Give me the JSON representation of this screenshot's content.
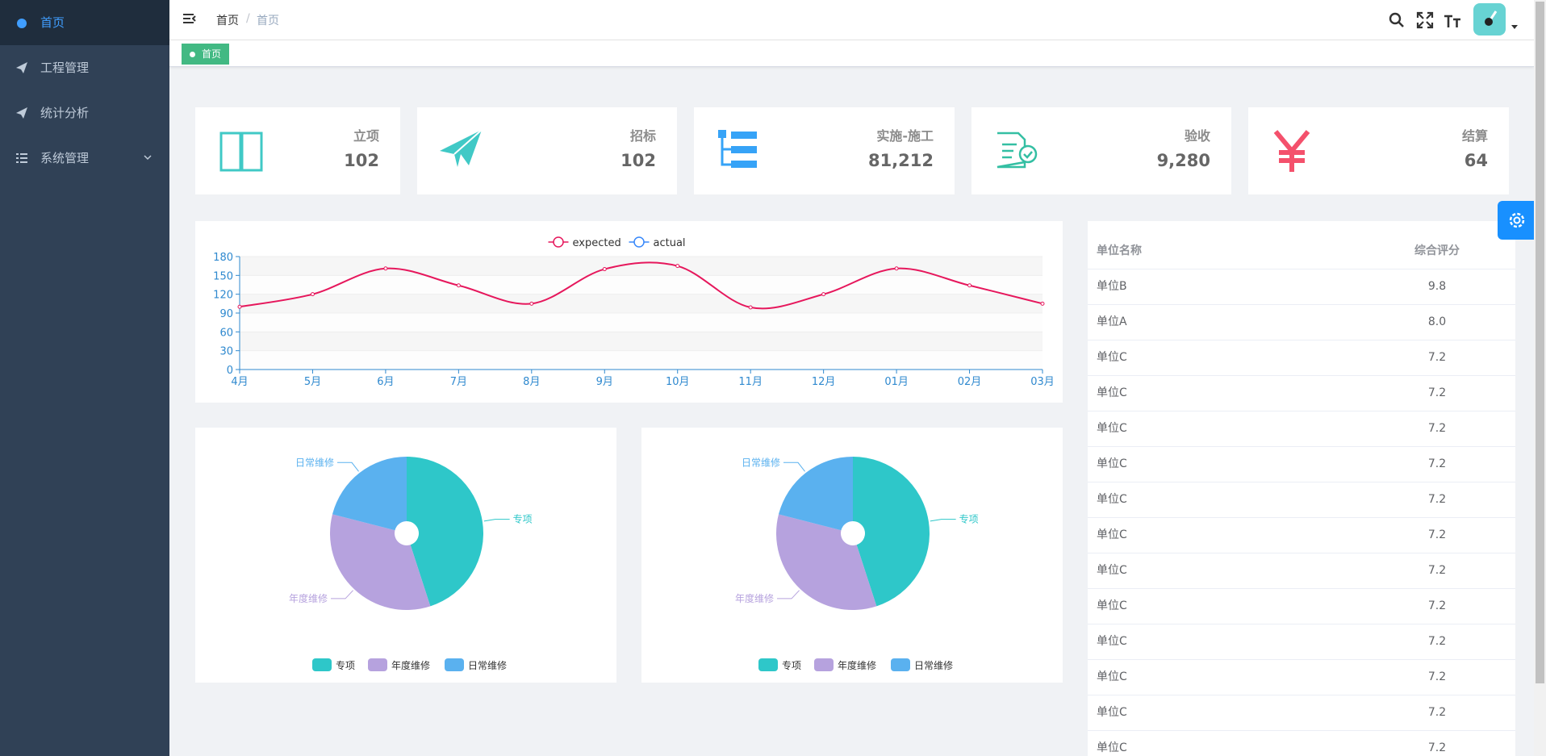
{
  "sidebar": {
    "menu": [
      "首页",
      "工程管理",
      "统计分析",
      "系统管理"
    ]
  },
  "header": {
    "breadcrumb": [
      "首页",
      "首页"
    ],
    "tag": "首页"
  },
  "cards": [
    {
      "label": "立项",
      "value": "102"
    },
    {
      "label": "招标",
      "value": "102"
    },
    {
      "label": "实施-施工",
      "value": "81,212"
    },
    {
      "label": "验收",
      "value": "9,280"
    },
    {
      "label": "结算",
      "value": "64"
    }
  ],
  "chart_data": [
    {
      "type": "line",
      "categories": [
        "4月",
        "5月",
        "6月",
        "7月",
        "8月",
        "9月",
        "10月",
        "11月",
        "12月",
        "01月",
        "02月",
        "03月"
      ],
      "series": [
        {
          "name": "expected",
          "color": "#e6175c",
          "values": [
            100,
            120,
            161,
            134,
            105,
            160,
            165,
            99,
            120,
            161,
            134,
            105
          ]
        },
        {
          "name": "actual",
          "color": "#3888fa",
          "values": [
            null,
            null,
            null,
            null,
            null,
            null,
            null,
            null,
            null,
            null,
            null,
            null
          ]
        }
      ],
      "ylim": [
        0,
        180
      ],
      "yticks": [
        0,
        30,
        60,
        90,
        120,
        150,
        180
      ],
      "grid": true
    },
    {
      "type": "pie",
      "categories": [
        "专项",
        "年度维修",
        "日常维修"
      ],
      "values": [
        45,
        34,
        21
      ],
      "colors": [
        "#2ec7c9",
        "#b6a2de",
        "#5ab1ef"
      ]
    },
    {
      "type": "pie",
      "categories": [
        "专项",
        "年度维修",
        "日常维修"
      ],
      "values": [
        45,
        34,
        21
      ],
      "colors": [
        "#2ec7c9",
        "#b6a2de",
        "#5ab1ef"
      ]
    }
  ],
  "table": {
    "columns": [
      "单位名称",
      "综合评分"
    ],
    "rows": [
      [
        "单位B",
        "9.8"
      ],
      [
        "单位A",
        "8.0"
      ],
      [
        "单位C",
        "7.2"
      ],
      [
        "单位C",
        "7.2"
      ],
      [
        "单位C",
        "7.2"
      ],
      [
        "单位C",
        "7.2"
      ],
      [
        "单位C",
        "7.2"
      ],
      [
        "单位C",
        "7.2"
      ],
      [
        "单位C",
        "7.2"
      ],
      [
        "单位C",
        "7.2"
      ],
      [
        "单位C",
        "7.2"
      ],
      [
        "单位C",
        "7.2"
      ],
      [
        "单位C",
        "7.2"
      ],
      [
        "单位C",
        "7.2"
      ]
    ]
  }
}
